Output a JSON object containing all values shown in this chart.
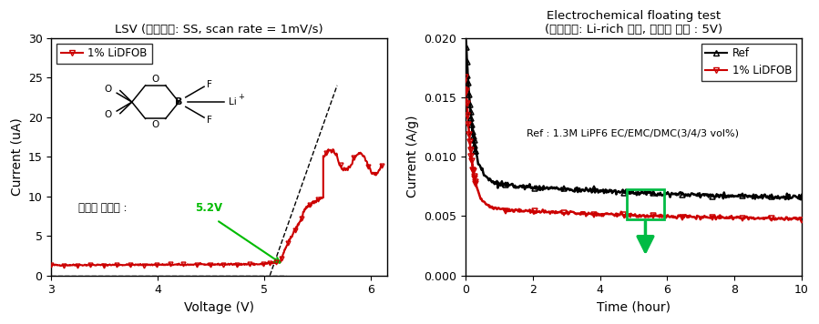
{
  "lsv_title": "LSV (작동전극: SS, scan rate = 1mV/s)",
  "lsv_xlabel": "Voltage (V)",
  "lsv_ylabel": "Current (uA)",
  "lsv_xlim": [
    3,
    6.15
  ],
  "lsv_ylim": [
    0,
    30
  ],
  "lsv_yticks": [
    0,
    5,
    10,
    15,
    20,
    25,
    30
  ],
  "lsv_xticks": [
    3,
    4,
    5,
    6
  ],
  "lsv_legend": "1% LiDFOB",
  "lsv_annotation_text": "고전압 안정성 : ",
  "lsv_annotation_voltage": "5.2V",
  "lsv_annotation_color": "#00bb00",
  "lsv_line_color": "#cc0000",
  "eft_title": "Electrochemical floating test",
  "eft_subtitle": "(작동전극: Li-rich 양극, 정전압 조건 : 5V)",
  "eft_xlabel": "Time (hour)",
  "eft_ylabel": "Current (A/g)",
  "eft_xlim": [
    0,
    10
  ],
  "eft_ylim": [
    0.0,
    0.02
  ],
  "eft_yticks": [
    0.0,
    0.005,
    0.01,
    0.015,
    0.02
  ],
  "eft_xticks": [
    0,
    2,
    4,
    6,
    8,
    10
  ],
  "eft_legend_ref": "Ref",
  "eft_legend_lidfob": "1% LiDFOB",
  "eft_annotation": "Ref : 1.3M LiPF6 EC/EMC/DMC(3/4/3 vol%)",
  "eft_ref_color": "#000000",
  "eft_lidfob_color": "#cc0000",
  "arrow_color": "#00bb44",
  "fig_width": 8.99,
  "fig_height": 3.56
}
